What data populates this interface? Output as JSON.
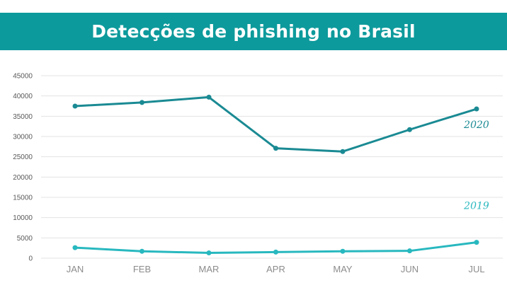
{
  "header": {
    "title": "Detecções de phishing no Brasil"
  },
  "colors": {
    "header_bg": "#0d9a9c",
    "series_2020": "#1a8a93",
    "series_2019": "#28b8bf",
    "grid": "#e3e3e3"
  },
  "chart_data": {
    "type": "line",
    "categories": [
      "JAN",
      "FEB",
      "MAR",
      "APR",
      "MAY",
      "JUN",
      "JUL"
    ],
    "series": [
      {
        "name": "2020",
        "values": [
          37500,
          38400,
          39700,
          27100,
          26300,
          31700,
          36800
        ]
      },
      {
        "name": "2019",
        "values": [
          2600,
          1700,
          1300,
          1500,
          1700,
          1800,
          3900
        ]
      }
    ],
    "yticks": [
      "0",
      "5000",
      "10000",
      "15000",
      "20000",
      "25000",
      "30000",
      "35000",
      "40000",
      "45000"
    ],
    "ylim": [
      0,
      45000
    ],
    "grid": true,
    "legend": "inline labels at right"
  }
}
